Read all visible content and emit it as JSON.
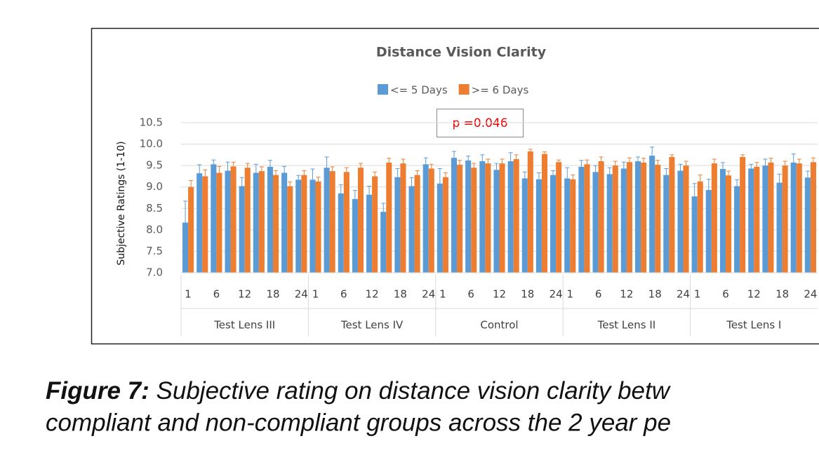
{
  "chart_data": {
    "type": "bar",
    "title": "Distance Vision Clarity",
    "ylabel": "Subjective Ratings (1-10)",
    "annotation": "p =0.046",
    "groups": [
      "Test Lens III",
      "Test Lens IV",
      "Control",
      "Test Lens II",
      "Test Lens I"
    ],
    "categories": [
      "1",
      null,
      "6",
      null,
      "12",
      null,
      "18",
      null,
      "24",
      "1",
      null,
      "6",
      null,
      "12",
      null,
      "18",
      null,
      "24",
      "1",
      null,
      "6",
      null,
      "12",
      null,
      "18",
      null,
      "24",
      "1",
      null,
      "6",
      null,
      "12",
      null,
      "18",
      null,
      "24",
      "1",
      null,
      "6",
      null,
      "12",
      null,
      "18",
      null,
      "24"
    ],
    "series": [
      {
        "name": "<= 5 Days",
        "color": "#5b9bd5",
        "values": [
          8.17,
          9.32,
          9.53,
          9.38,
          9.02,
          9.33,
          9.47,
          9.33,
          9.17,
          9.17,
          9.45,
          8.85,
          8.72,
          8.82,
          8.42,
          9.23,
          9.02,
          9.53,
          9.08,
          9.68,
          9.62,
          9.6,
          9.4,
          9.6,
          9.2,
          9.18,
          9.28,
          9.2,
          9.47,
          9.35,
          9.3,
          9.43,
          9.6,
          9.73,
          9.28,
          9.38,
          8.78,
          8.93,
          9.42,
          9.02,
          9.43,
          9.5,
          9.1,
          9.57,
          9.22
        ],
        "errors": [
          0.5,
          0.2,
          0.1,
          0.2,
          0.2,
          0.2,
          0.15,
          0.15,
          0.1,
          0.25,
          0.25,
          0.2,
          0.2,
          0.2,
          0.2,
          0.2,
          0.2,
          0.15,
          0.35,
          0.15,
          0.1,
          0.15,
          0.15,
          0.2,
          0.15,
          0.15,
          0.1,
          0.25,
          0.15,
          0.15,
          0.15,
          0.15,
          0.1,
          0.2,
          0.15,
          0.15,
          0.3,
          0.25,
          0.15,
          0.15,
          0.1,
          0.15,
          0.2,
          0.2,
          0.15
        ]
      },
      {
        "name": ">= 6 Days",
        "color": "#ed7d31",
        "values": [
          9.0,
          9.25,
          9.33,
          9.48,
          9.45,
          9.37,
          9.28,
          9.02,
          9.28,
          9.13,
          9.37,
          9.35,
          9.45,
          9.25,
          9.57,
          9.55,
          9.28,
          9.43,
          9.23,
          9.52,
          9.45,
          9.55,
          9.55,
          9.65,
          9.83,
          9.77,
          9.58,
          9.18,
          9.53,
          9.6,
          9.5,
          9.58,
          9.57,
          9.52,
          9.7,
          9.5,
          9.13,
          9.55,
          9.27,
          9.7,
          9.47,
          9.57,
          9.5,
          9.55,
          9.58
        ],
        "errors": [
          0.15,
          0.15,
          0.15,
          0.1,
          0.1,
          0.1,
          0.1,
          0.1,
          0.1,
          0.1,
          0.1,
          0.1,
          0.1,
          0.1,
          0.1,
          0.1,
          0.1,
          0.1,
          0.1,
          0.1,
          0.1,
          0.1,
          0.1,
          0.1,
          0.05,
          0.05,
          0.05,
          0.1,
          0.1,
          0.1,
          0.1,
          0.1,
          0.1,
          0.1,
          0.05,
          0.1,
          0.15,
          0.1,
          0.1,
          0.05,
          0.1,
          0.1,
          0.1,
          0.1,
          0.1
        ]
      }
    ],
    "ylim": [
      7.0,
      10.5
    ],
    "yticks": [
      {
        "value": 7.0,
        "label": "7.0"
      },
      {
        "value": 7.5,
        "label": "7.5"
      },
      {
        "value": 8.0,
        "label": "8.0"
      },
      {
        "value": 8.5,
        "label": "8.5"
      },
      {
        "value": 9.0,
        "label": "9.0"
      },
      {
        "value": 9.5,
        "label": "9.5"
      },
      {
        "value": 10.0,
        "label": "10.0"
      },
      {
        "value": 10.5,
        "label": "10.5"
      }
    ],
    "grid": true
  },
  "caption": {
    "lead": "Figure 7:",
    "line1": "Subjective rating on distance vision clarity betw",
    "line2": "compliant and non-compliant groups across the 2 year pe"
  }
}
